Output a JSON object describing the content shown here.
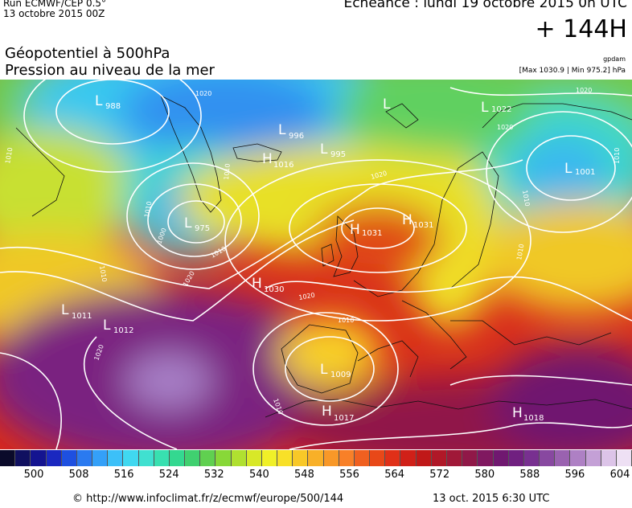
{
  "header": {
    "run_title": "Run ECMWF/CEP 0.5°",
    "run_date": "13 octobre 2015 00Z",
    "echeance": "Echéance : lundi 19 octobre 2015 0h UTC",
    "lead_time": "+ 144H",
    "field_line1": "Géopotentiel à 500hPa",
    "field_line2": "Pression au niveau de la mer",
    "model_tag": "gpdam",
    "max_min": "[Max 1030.9 | Min 975.2] hPa"
  },
  "map": {
    "pressure_centers": [
      {
        "type": "L",
        "value": "988"
      },
      {
        "type": "L",
        "value": "996"
      },
      {
        "type": "L",
        "value": "995"
      },
      {
        "type": "H",
        "value": "1016"
      },
      {
        "type": "L",
        "value": "975"
      },
      {
        "type": "L",
        "value": ""
      },
      {
        "type": "L",
        "value": "1022"
      },
      {
        "type": "L",
        "value": "1001"
      },
      {
        "type": "H",
        "value": "1031"
      },
      {
        "type": "H",
        "value": "1031"
      },
      {
        "type": "H",
        "value": "1030"
      },
      {
        "type": "L",
        "value": "1011"
      },
      {
        "type": "L",
        "value": "1012"
      },
      {
        "type": "L",
        "value": "1009"
      },
      {
        "type": "H",
        "value": "1017"
      },
      {
        "type": "H",
        "value": "1018"
      }
    ],
    "isobar_labels": [
      "1010",
      "1010",
      "1000",
      "1010",
      "1020",
      "1020",
      "1010",
      "1020",
      "1010",
      "1020",
      "1010",
      "1010",
      "1020",
      "1010",
      "1010",
      "1020",
      "1020",
      "1010"
    ]
  },
  "colorbar": {
    "colors": [
      "#0a0a2a",
      "#101060",
      "#141490",
      "#1a28c0",
      "#1e50e0",
      "#2a7af0",
      "#34a0f8",
      "#3cc0f8",
      "#40d8f0",
      "#40e0d0",
      "#38e0b0",
      "#34d890",
      "#40d070",
      "#60d050",
      "#88d838",
      "#b0e030",
      "#d8e828",
      "#f0f028",
      "#f8e028",
      "#f8c828",
      "#f8b028",
      "#f89828",
      "#f88028",
      "#f06020",
      "#e84818",
      "#e03018",
      "#d02018",
      "#c01818",
      "#b01828",
      "#a01838",
      "#901848",
      "#801860",
      "#701870",
      "#702080",
      "#783090",
      "#8848a0",
      "#9a62b0",
      "#ae80c4",
      "#c4a0d6",
      "#dcc4e8",
      "#eee0f4"
    ],
    "ticks": [
      "500",
      "508",
      "516",
      "524",
      "532",
      "540",
      "548",
      "556",
      "564",
      "572",
      "580",
      "588",
      "596",
      "604"
    ]
  },
  "footer": {
    "url": "© http://www.infoclimat.fr/z/ecmwf/europe/500/144",
    "stamp": "13 oct. 2015  6:30 UTC"
  }
}
